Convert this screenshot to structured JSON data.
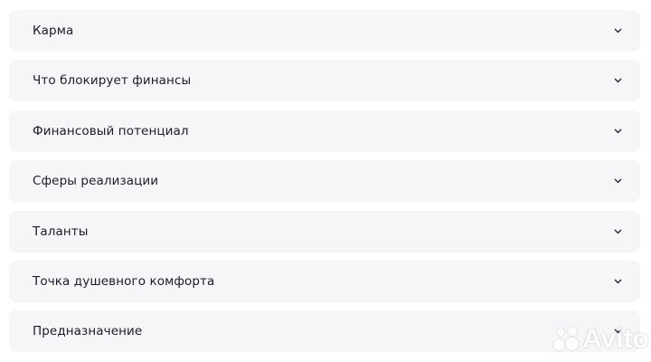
{
  "accordion": {
    "items": [
      {
        "label": "Карма",
        "icon": "chevron-down-icon"
      },
      {
        "label": "Что блокирует финансы",
        "icon": "chevron-down-icon"
      },
      {
        "label": "Финансовый потенциал",
        "icon": "chevron-down-icon"
      },
      {
        "label": "Сферы реализации",
        "icon": "chevron-down-icon"
      },
      {
        "label": "Таланты",
        "icon": "chevron-down-icon"
      },
      {
        "label": "Точка душевного комфорта",
        "icon": "chevron-down-icon"
      },
      {
        "label": "Предназначение",
        "icon": "chevron-down-icon"
      }
    ]
  },
  "watermark": {
    "text": "Avito"
  },
  "colors": {
    "card_bg": "#f6f5f8",
    "text": "#1b1b2a"
  }
}
